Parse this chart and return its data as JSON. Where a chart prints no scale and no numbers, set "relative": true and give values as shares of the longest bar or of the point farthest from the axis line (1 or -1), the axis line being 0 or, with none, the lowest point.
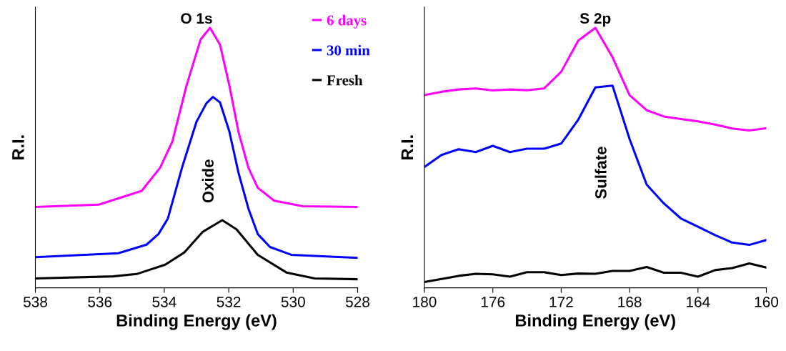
{
  "chart_data": [
    {
      "type": "line",
      "title": "O 1s",
      "xlabel": "Binding Energy (eV)",
      "ylabel": "R.I.",
      "relative": true,
      "legend": "top right",
      "xlim": [
        538,
        528
      ],
      "xticks": [
        538,
        536,
        534,
        532,
        530,
        528
      ],
      "annotations": [
        "Oxide"
      ],
      "series": [
        {
          "name": "6 days",
          "color": "#ff00ff",
          "x": [
            538,
            536.03,
            534.7,
            534.13,
            533.75,
            533.31,
            532.87,
            532.58,
            532.27,
            531.98,
            531.7,
            531.39,
            531.1,
            530.59,
            529.7,
            528
          ],
          "values": [
            0.311,
            0.32,
            0.373,
            0.462,
            0.562,
            0.778,
            0.956,
            1,
            0.935,
            0.778,
            0.601,
            0.462,
            0.385,
            0.335,
            0.314,
            0.311
          ]
        },
        {
          "name": "30 min",
          "color": "#0000ff",
          "x": [
            538,
            535.43,
            534.55,
            534.18,
            533.89,
            533.45,
            533.0,
            532.69,
            532.49,
            532.27,
            531.98,
            531.7,
            531.39,
            531.1,
            530.72,
            530.06,
            528
          ],
          "values": [
            0.118,
            0.133,
            0.166,
            0.207,
            0.266,
            0.462,
            0.639,
            0.71,
            0.734,
            0.713,
            0.601,
            0.444,
            0.305,
            0.207,
            0.157,
            0.127,
            0.115
          ]
        },
        {
          "name": "Fresh",
          "color": "#000000",
          "x": [
            538,
            535.59,
            534.86,
            533.97,
            533.38,
            532.8,
            532.2,
            531.76,
            531.1,
            530.21,
            529.33,
            528
          ],
          "values": [
            0.036,
            0.044,
            0.053,
            0.089,
            0.136,
            0.216,
            0.26,
            0.225,
            0.127,
            0.059,
            0.036,
            0.033
          ]
        }
      ]
    },
    {
      "type": "line",
      "title": "S 2p",
      "xlabel": "Binding Energy (eV)",
      "ylabel": "R.I.",
      "relative": true,
      "xlim": [
        180,
        160
      ],
      "xticks": [
        180,
        176,
        172,
        168,
        164,
        160
      ],
      "annotations": [
        "Sulfate"
      ],
      "x": [
        180,
        179,
        178,
        177,
        176,
        175,
        174,
        173,
        172,
        171,
        170,
        169,
        168,
        167,
        166,
        165,
        164,
        163,
        162,
        161,
        160
      ],
      "series": [
        {
          "color": "#ff00ff",
          "values": [
            0.741,
            0.754,
            0.763,
            0.767,
            0.759,
            0.763,
            0.76,
            0.767,
            0.831,
            0.951,
            1,
            0.887,
            0.741,
            0.683,
            0.659,
            0.649,
            0.64,
            0.628,
            0.613,
            0.605,
            0.614
          ]
        },
        {
          "color": "#0000ff",
          "values": [
            0.465,
            0.511,
            0.533,
            0.522,
            0.546,
            0.522,
            0.535,
            0.535,
            0.555,
            0.647,
            0.771,
            0.778,
            0.572,
            0.397,
            0.325,
            0.267,
            0.235,
            0.203,
            0.174,
            0.165,
            0.184
          ]
        },
        {
          "color": "#000000",
          "values": [
            0.022,
            0.034,
            0.046,
            0.054,
            0.052,
            0.043,
            0.06,
            0.06,
            0.049,
            0.055,
            0.054,
            0.065,
            0.065,
            0.08,
            0.058,
            0.058,
            0.043,
            0.068,
            0.076,
            0.094,
            0.078
          ]
        }
      ]
    }
  ]
}
